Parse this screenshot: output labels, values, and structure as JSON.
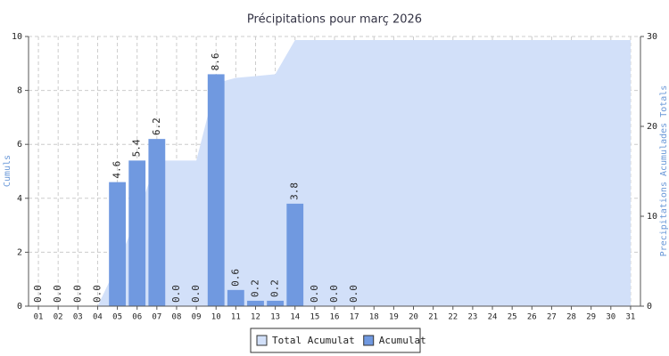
{
  "chart_data": {
    "type": "bar",
    "title": "Précipitations pour març 2026",
    "ylabel": "Cumuls",
    "y2label": "Precipitations Acumulades Totals",
    "categories": [
      "01",
      "02",
      "03",
      "04",
      "05",
      "06",
      "07",
      "08",
      "09",
      "10",
      "11",
      "12",
      "13",
      "14",
      "15",
      "16",
      "17",
      "18",
      "19",
      "20",
      "21",
      "22",
      "23",
      "24",
      "25",
      "26",
      "27",
      "28",
      "29",
      "30",
      "31"
    ],
    "series": [
      {
        "name": "Total Acumulat",
        "type": "area",
        "axis": "y2",
        "color": "#d2e0f9",
        "values": [
          0,
          0,
          0,
          0,
          4.6,
          10,
          16.2,
          16.2,
          16.2,
          24.8,
          25.4,
          25.6,
          25.8,
          29.6,
          29.6,
          29.6,
          29.6,
          29.6,
          29.6,
          29.6,
          29.6,
          29.6,
          29.6,
          29.6,
          29.6,
          29.6,
          29.6,
          29.6,
          29.6,
          29.6,
          29.6
        ]
      },
      {
        "name": "Acumulat",
        "type": "bar",
        "color": "#7099e0",
        "values": [
          0,
          0,
          0,
          0,
          4.6,
          5.4,
          6.2,
          0,
          0,
          8.6,
          0.6,
          0.2,
          0.2,
          3.8,
          0,
          0,
          0,
          null,
          null,
          null,
          null,
          null,
          null,
          null,
          null,
          null,
          null,
          null,
          null,
          null,
          null
        ],
        "value_labels": [
          "0.0",
          "0.0",
          "0.0",
          "0.0",
          "4.6",
          "5.4",
          "6.2",
          "0.0",
          "0.0",
          "8.6",
          "0.6",
          "0.2",
          "0.2",
          "3.8",
          "0.0",
          "0.0",
          "0.0",
          null,
          null,
          null,
          null,
          null,
          null,
          null,
          null,
          null,
          null,
          null,
          null,
          null,
          null
        ]
      }
    ],
    "ylim": [
      0,
      10
    ],
    "yticks": [
      0,
      2,
      4,
      6,
      8,
      10
    ],
    "y2lim": [
      0,
      30
    ],
    "y2ticks": [
      0,
      10,
      20,
      30
    ],
    "grid": true,
    "legend": "bottom"
  }
}
